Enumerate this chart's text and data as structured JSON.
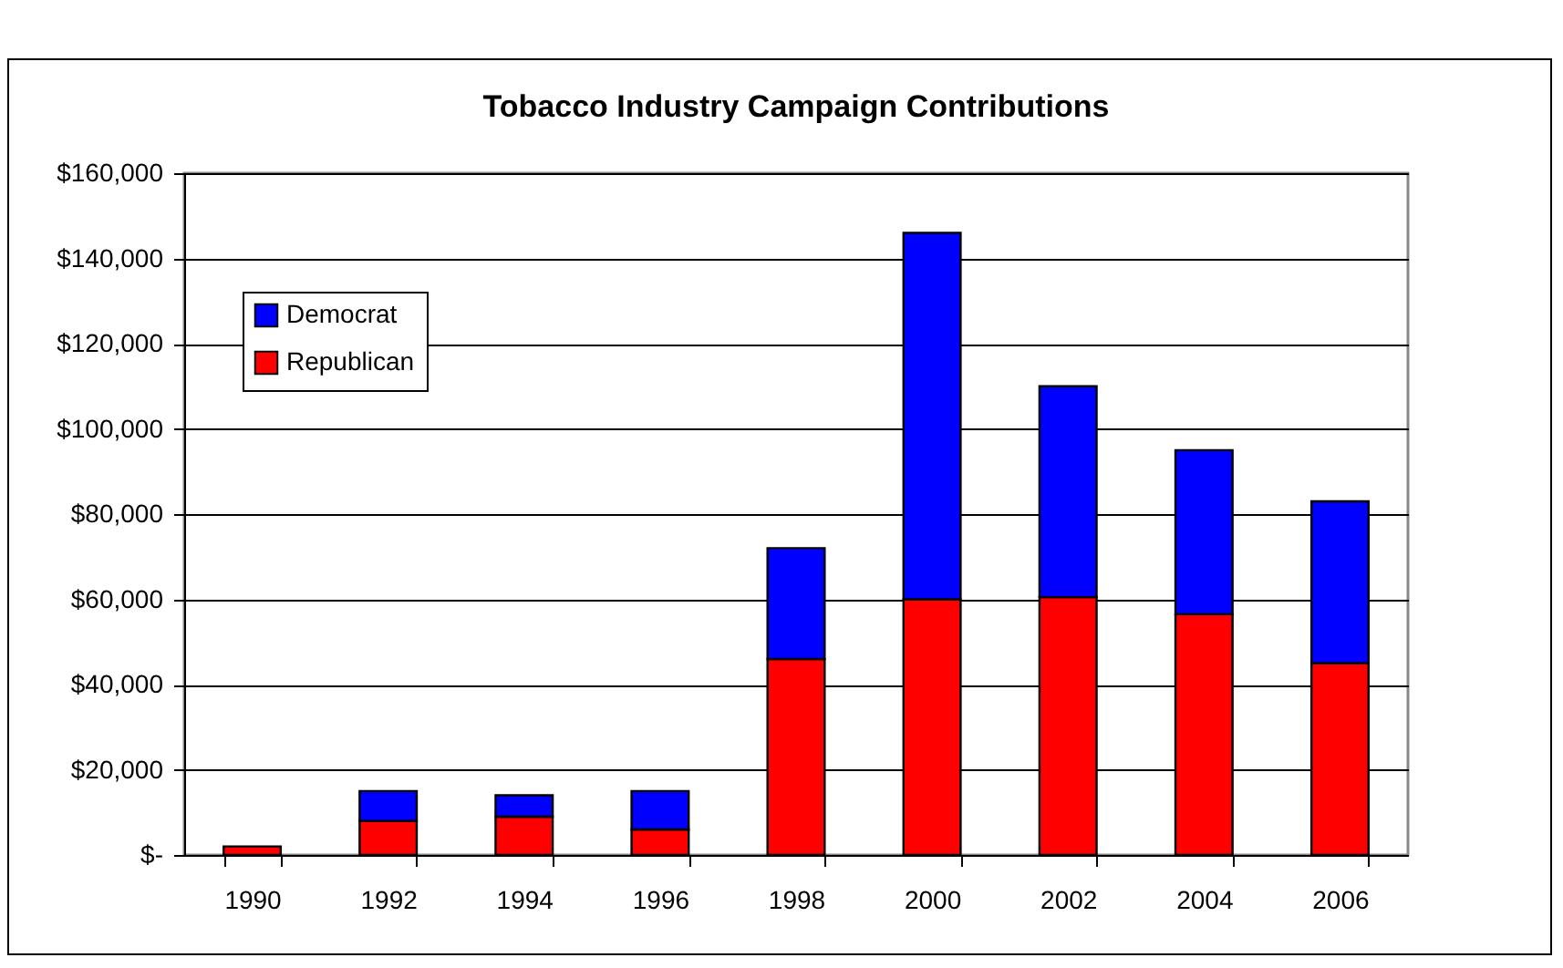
{
  "chart_data": {
    "type": "bar",
    "title": "Tobacco Industry Campaign Contributions",
    "categories": [
      "1990",
      "1992",
      "1994",
      "1996",
      "1998",
      "2000",
      "2002",
      "2004",
      "2006"
    ],
    "stacked": true,
    "series": [
      {
        "name": "Republican",
        "color": "#ff0000",
        "values": [
          2000,
          8000,
          9000,
          6000,
          46000,
          60000,
          60500,
          56500,
          45000
        ]
      },
      {
        "name": "Democrat",
        "color": "#0000ff",
        "values": [
          null,
          7000,
          5000,
          9000,
          26000,
          86000,
          49500,
          38500,
          38000
        ]
      }
    ],
    "ylim": [
      0,
      160000
    ],
    "yticks": [
      {
        "value": 0,
        "label": "$-"
      },
      {
        "value": 20000,
        "label": "$20,000"
      },
      {
        "value": 40000,
        "label": "$40,000"
      },
      {
        "value": 60000,
        "label": "$60,000"
      },
      {
        "value": 80000,
        "label": "$80,000"
      },
      {
        "value": 100000,
        "label": "$100,000"
      },
      {
        "value": 120000,
        "label": "$120,000"
      },
      {
        "value": 140000,
        "label": "$140,000"
      },
      {
        "value": 160000,
        "label": "$160,000"
      }
    ],
    "grid": "y",
    "legend": "top left"
  }
}
